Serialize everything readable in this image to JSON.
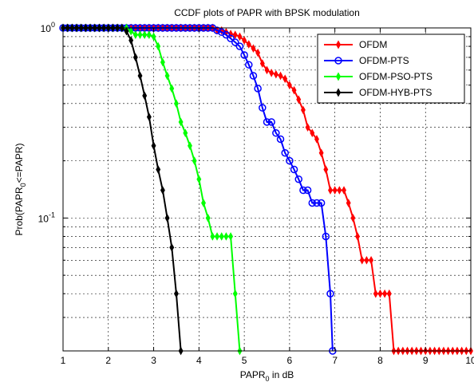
{
  "chart_data": {
    "type": "line",
    "title": "CCDF plots of PAPR  with BPSK modulation",
    "xlabel": {
      "main": "PAPR",
      "sub": "0",
      "rest": " in dB"
    },
    "ylabel": {
      "pre": "Prob(PAPR",
      "sub": "0",
      "post": "<=PAPR)"
    },
    "xlim": [
      1,
      10
    ],
    "ylim": [
      0.02,
      1
    ],
    "yscale": "log",
    "grid": true,
    "legend_position": "top-right",
    "x_ticks": [
      "1",
      "2",
      "3",
      "4",
      "5",
      "6",
      "7",
      "8",
      "9",
      "10"
    ],
    "y_ticks": [
      {
        "value": 1,
        "base": "10",
        "exp": "0"
      },
      {
        "value": 0.1,
        "base": "10",
        "exp": "-1"
      }
    ],
    "series": [
      {
        "name": "OFDM",
        "color": "#ff0000",
        "marker": "diamond",
        "points": [
          [
            1.0,
            1.0
          ],
          [
            1.1,
            1.0
          ],
          [
            1.2,
            1.0
          ],
          [
            1.3,
            1.0
          ],
          [
            1.4,
            1.0
          ],
          [
            1.5,
            1.0
          ],
          [
            1.6,
            1.0
          ],
          [
            1.7,
            1.0
          ],
          [
            1.8,
            1.0
          ],
          [
            1.9,
            1.0
          ],
          [
            2.0,
            1.0
          ],
          [
            2.1,
            1.0
          ],
          [
            2.2,
            1.0
          ],
          [
            2.3,
            1.0
          ],
          [
            2.4,
            1.0
          ],
          [
            2.5,
            1.0
          ],
          [
            2.6,
            1.0
          ],
          [
            2.7,
            1.0
          ],
          [
            2.8,
            1.0
          ],
          [
            2.9,
            1.0
          ],
          [
            3.0,
            1.0
          ],
          [
            3.1,
            1.0
          ],
          [
            3.2,
            1.0
          ],
          [
            3.3,
            1.0
          ],
          [
            3.4,
            1.0
          ],
          [
            3.5,
            1.0
          ],
          [
            3.6,
            1.0
          ],
          [
            3.7,
            1.0
          ],
          [
            3.8,
            1.0
          ],
          [
            3.9,
            1.0
          ],
          [
            4.0,
            1.0
          ],
          [
            4.1,
            1.0
          ],
          [
            4.2,
            1.0
          ],
          [
            4.3,
            1.0
          ],
          [
            4.4,
            0.97
          ],
          [
            4.5,
            0.97
          ],
          [
            4.6,
            0.95
          ],
          [
            4.7,
            0.93
          ],
          [
            4.8,
            0.92
          ],
          [
            4.9,
            0.9
          ],
          [
            5.0,
            0.86
          ],
          [
            5.1,
            0.82
          ],
          [
            5.2,
            0.78
          ],
          [
            5.3,
            0.74
          ],
          [
            5.4,
            0.65
          ],
          [
            5.5,
            0.6
          ],
          [
            5.6,
            0.58
          ],
          [
            5.7,
            0.57
          ],
          [
            5.8,
            0.56
          ],
          [
            5.9,
            0.54
          ],
          [
            6.0,
            0.5
          ],
          [
            6.1,
            0.47
          ],
          [
            6.2,
            0.42
          ],
          [
            6.3,
            0.37
          ],
          [
            6.4,
            0.3
          ],
          [
            6.5,
            0.28
          ],
          [
            6.6,
            0.26
          ],
          [
            6.7,
            0.22
          ],
          [
            6.8,
            0.18
          ],
          [
            6.9,
            0.14
          ],
          [
            7.0,
            0.14
          ],
          [
            7.1,
            0.14
          ],
          [
            7.2,
            0.14
          ],
          [
            7.3,
            0.12
          ],
          [
            7.4,
            0.1
          ],
          [
            7.5,
            0.08
          ],
          [
            7.6,
            0.06
          ],
          [
            7.7,
            0.06
          ],
          [
            7.8,
            0.06
          ],
          [
            7.9,
            0.04
          ],
          [
            8.0,
            0.04
          ],
          [
            8.1,
            0.04
          ],
          [
            8.2,
            0.04
          ],
          [
            8.3,
            0.02
          ],
          [
            8.4,
            0.02
          ],
          [
            8.5,
            0.02
          ],
          [
            8.6,
            0.02
          ],
          [
            8.7,
            0.02
          ],
          [
            8.8,
            0.02
          ],
          [
            8.9,
            0.02
          ],
          [
            9.0,
            0.02
          ],
          [
            9.1,
            0.02
          ],
          [
            9.2,
            0.02
          ],
          [
            9.3,
            0.02
          ],
          [
            9.4,
            0.02
          ],
          [
            9.5,
            0.02
          ],
          [
            9.6,
            0.02
          ],
          [
            9.7,
            0.02
          ],
          [
            9.8,
            0.02
          ],
          [
            9.9,
            0.02
          ],
          [
            10.0,
            0.02
          ]
        ]
      },
      {
        "name": "OFDM-PTS",
        "color": "#0000ff",
        "marker": "circle",
        "points": [
          [
            1.0,
            1.0
          ],
          [
            1.1,
            1.0
          ],
          [
            1.2,
            1.0
          ],
          [
            1.3,
            1.0
          ],
          [
            1.4,
            1.0
          ],
          [
            1.5,
            1.0
          ],
          [
            1.6,
            1.0
          ],
          [
            1.7,
            1.0
          ],
          [
            1.8,
            1.0
          ],
          [
            1.9,
            1.0
          ],
          [
            2.0,
            1.0
          ],
          [
            2.1,
            1.0
          ],
          [
            2.2,
            1.0
          ],
          [
            2.3,
            1.0
          ],
          [
            2.4,
            1.0
          ],
          [
            2.5,
            1.0
          ],
          [
            2.6,
            1.0
          ],
          [
            2.7,
            1.0
          ],
          [
            2.8,
            1.0
          ],
          [
            2.9,
            1.0
          ],
          [
            3.0,
            1.0
          ],
          [
            3.1,
            1.0
          ],
          [
            3.2,
            1.0
          ],
          [
            3.3,
            1.0
          ],
          [
            3.4,
            1.0
          ],
          [
            3.5,
            1.0
          ],
          [
            3.6,
            1.0
          ],
          [
            3.7,
            1.0
          ],
          [
            3.8,
            1.0
          ],
          [
            3.9,
            1.0
          ],
          [
            4.0,
            1.0
          ],
          [
            4.1,
            1.0
          ],
          [
            4.2,
            1.0
          ],
          [
            4.3,
            1.0
          ],
          [
            4.4,
            0.97
          ],
          [
            4.5,
            0.95
          ],
          [
            4.6,
            0.92
          ],
          [
            4.7,
            0.88
          ],
          [
            4.8,
            0.84
          ],
          [
            4.9,
            0.8
          ],
          [
            5.0,
            0.72
          ],
          [
            5.1,
            0.64
          ],
          [
            5.2,
            0.56
          ],
          [
            5.3,
            0.48
          ],
          [
            5.4,
            0.38
          ],
          [
            5.5,
            0.32
          ],
          [
            5.6,
            0.32
          ],
          [
            5.7,
            0.28
          ],
          [
            5.8,
            0.26
          ],
          [
            5.9,
            0.22
          ],
          [
            6.0,
            0.2
          ],
          [
            6.1,
            0.18
          ],
          [
            6.2,
            0.16
          ],
          [
            6.3,
            0.14
          ],
          [
            6.4,
            0.14
          ],
          [
            6.5,
            0.12
          ],
          [
            6.6,
            0.12
          ],
          [
            6.7,
            0.12
          ],
          [
            6.8,
            0.08
          ],
          [
            6.9,
            0.04
          ],
          [
            6.95,
            0.02
          ]
        ]
      },
      {
        "name": "OFDM-PSO-PTS",
        "color": "#00ff00",
        "marker": "diamond",
        "points": [
          [
            1.0,
            1.0
          ],
          [
            1.1,
            1.0
          ],
          [
            1.2,
            1.0
          ],
          [
            1.3,
            1.0
          ],
          [
            1.4,
            1.0
          ],
          [
            1.5,
            1.0
          ],
          [
            1.6,
            1.0
          ],
          [
            1.7,
            1.0
          ],
          [
            1.8,
            1.0
          ],
          [
            1.9,
            1.0
          ],
          [
            2.0,
            1.0
          ],
          [
            2.1,
            1.0
          ],
          [
            2.2,
            1.0
          ],
          [
            2.3,
            1.0
          ],
          [
            2.4,
            1.0
          ],
          [
            2.5,
            0.96
          ],
          [
            2.6,
            0.92
          ],
          [
            2.7,
            0.92
          ],
          [
            2.8,
            0.92
          ],
          [
            2.9,
            0.92
          ],
          [
            3.0,
            0.9
          ],
          [
            3.1,
            0.8
          ],
          [
            3.2,
            0.66
          ],
          [
            3.3,
            0.56
          ],
          [
            3.4,
            0.48
          ],
          [
            3.5,
            0.4
          ],
          [
            3.6,
            0.32
          ],
          [
            3.7,
            0.28
          ],
          [
            3.8,
            0.24
          ],
          [
            3.9,
            0.2
          ],
          [
            4.0,
            0.16
          ],
          [
            4.1,
            0.12
          ],
          [
            4.2,
            0.1
          ],
          [
            4.3,
            0.08
          ],
          [
            4.4,
            0.08
          ],
          [
            4.5,
            0.08
          ],
          [
            4.6,
            0.08
          ],
          [
            4.7,
            0.08
          ],
          [
            4.8,
            0.04
          ],
          [
            4.9,
            0.02
          ]
        ]
      },
      {
        "name": "OFDM-HYB-PTS",
        "color": "#000000",
        "marker": "diamond",
        "points": [
          [
            1.0,
            1.0
          ],
          [
            1.1,
            1.0
          ],
          [
            1.2,
            1.0
          ],
          [
            1.3,
            1.0
          ],
          [
            1.4,
            1.0
          ],
          [
            1.5,
            1.0
          ],
          [
            1.6,
            1.0
          ],
          [
            1.7,
            1.0
          ],
          [
            1.8,
            1.0
          ],
          [
            1.9,
            1.0
          ],
          [
            2.0,
            1.0
          ],
          [
            2.1,
            1.0
          ],
          [
            2.2,
            1.0
          ],
          [
            2.3,
            1.0
          ],
          [
            2.4,
            0.96
          ],
          [
            2.5,
            0.86
          ],
          [
            2.6,
            0.7
          ],
          [
            2.7,
            0.56
          ],
          [
            2.8,
            0.44
          ],
          [
            2.9,
            0.34
          ],
          [
            3.0,
            0.24
          ],
          [
            3.1,
            0.18
          ],
          [
            3.2,
            0.14
          ],
          [
            3.3,
            0.1
          ],
          [
            3.4,
            0.07
          ],
          [
            3.5,
            0.04
          ],
          [
            3.6,
            0.02
          ]
        ]
      }
    ]
  }
}
